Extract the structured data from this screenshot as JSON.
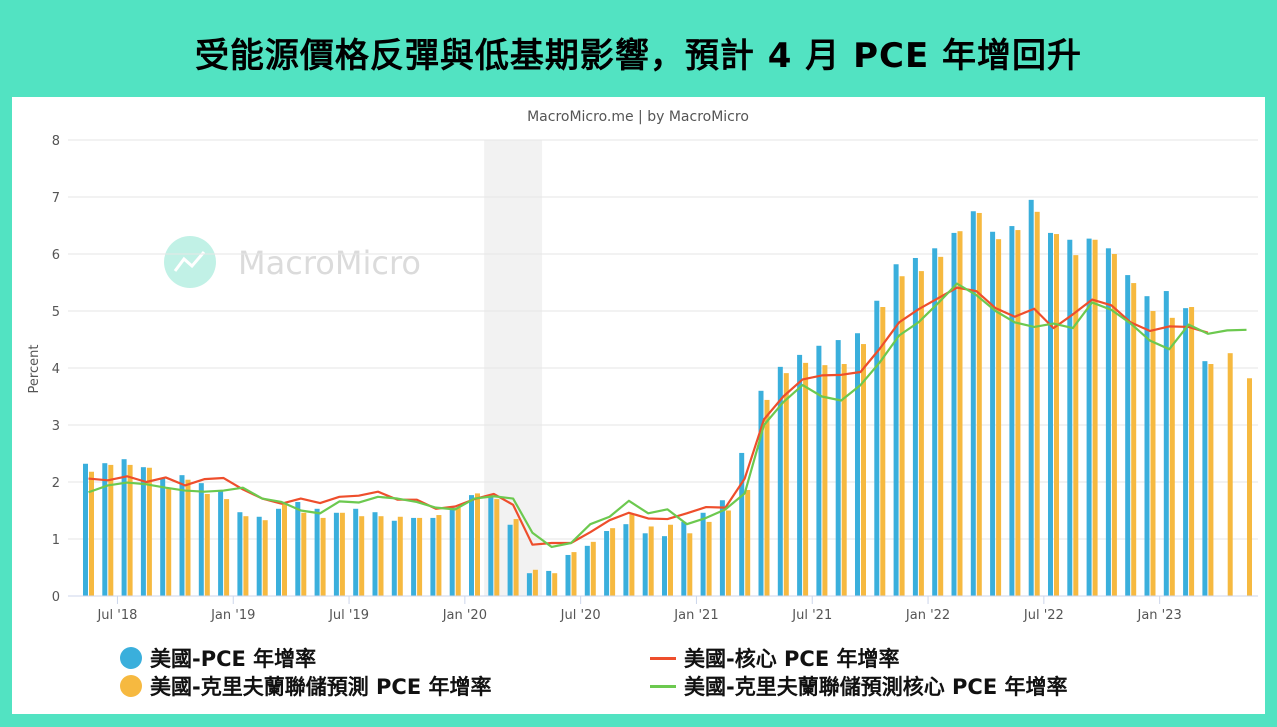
{
  "title": "受能源價格反彈與低基期影響，預計 4 月 PCE 年增回升",
  "chart_data": {
    "type": "bar+line",
    "subtitle": "MacroMicro.me | by MacroMicro",
    "watermark": "MacroMicro",
    "ylabel": "Percent",
    "ylim": [
      0,
      8
    ],
    "yticks": [
      0,
      1,
      2,
      3,
      4,
      5,
      6,
      7,
      8
    ],
    "grid": true,
    "legend_position": "bottom",
    "xtick_labels": [
      {
        "month": "2018-07",
        "label": "Jul '18"
      },
      {
        "month": "2019-01",
        "label": "Jan '19"
      },
      {
        "month": "2019-07",
        "label": "Jul '19"
      },
      {
        "month": "2020-01",
        "label": "Jan '20"
      },
      {
        "month": "2020-07",
        "label": "Jul '20"
      },
      {
        "month": "2021-01",
        "label": "Jan '21"
      },
      {
        "month": "2021-07",
        "label": "Jul '21"
      },
      {
        "month": "2022-01",
        "label": "Jan '22"
      },
      {
        "month": "2022-07",
        "label": "Jul '22"
      },
      {
        "month": "2023-01",
        "label": "Jan '23"
      }
    ],
    "shaded_period": [
      "2020-02",
      "2020-04"
    ],
    "start_month": "2018-05",
    "series": [
      {
        "name": "美國-PCE 年增率",
        "type": "bar",
        "color": "#3aafdc",
        "values": [
          2.32,
          2.33,
          2.4,
          2.26,
          2.07,
          2.12,
          1.98,
          1.86,
          1.47,
          1.39,
          1.53,
          1.65,
          1.53,
          1.46,
          1.53,
          1.47,
          1.32,
          1.37,
          1.37,
          1.55,
          1.77,
          1.74,
          1.25,
          0.4,
          0.44,
          0.72,
          0.88,
          1.14,
          1.26,
          1.1,
          1.05,
          1.3,
          1.46,
          1.68,
          2.51,
          3.6,
          4.02,
          4.23,
          4.39,
          4.49,
          4.61,
          5.18,
          5.82,
          5.93,
          6.1,
          6.37,
          6.75,
          6.39,
          6.49,
          6.95,
          6.37,
          6.25,
          6.27,
          6.1,
          5.63,
          5.26,
          5.35,
          5.05,
          4.12,
          null,
          null
        ]
      },
      {
        "name": "美國-克里夫蘭聯儲預測 PCE 年增率",
        "type": "bar",
        "color": "#f6b940",
        "values": [
          2.18,
          2.3,
          2.3,
          2.25,
          1.9,
          2.04,
          1.79,
          1.7,
          1.4,
          1.33,
          1.63,
          1.46,
          1.37,
          1.46,
          1.4,
          1.4,
          1.39,
          1.37,
          1.42,
          1.55,
          1.8,
          1.7,
          1.35,
          0.46,
          0.4,
          0.77,
          0.95,
          1.19,
          1.44,
          1.22,
          1.25,
          1.1,
          1.3,
          1.5,
          1.86,
          3.44,
          3.91,
          4.09,
          4.05,
          4.07,
          4.42,
          5.07,
          5.61,
          5.7,
          5.95,
          6.4,
          6.72,
          6.26,
          6.42,
          6.74,
          6.35,
          5.98,
          6.25,
          6.0,
          5.49,
          5.0,
          4.88,
          5.07,
          4.07,
          4.26,
          3.82
        ]
      },
      {
        "name": "美國-核心 PCE 年增率",
        "type": "line",
        "color": "#ee4e2c",
        "values": [
          2.06,
          2.03,
          2.1,
          2.0,
          2.08,
          1.94,
          2.05,
          2.07,
          1.87,
          1.71,
          1.62,
          1.71,
          1.63,
          1.74,
          1.76,
          1.83,
          1.69,
          1.69,
          1.53,
          1.57,
          1.7,
          1.79,
          1.6,
          0.9,
          0.93,
          0.93,
          1.12,
          1.33,
          1.46,
          1.36,
          1.35,
          1.45,
          1.56,
          1.55,
          2.06,
          3.1,
          3.5,
          3.8,
          3.87,
          3.88,
          3.93,
          4.34,
          4.8,
          5.03,
          5.22,
          5.41,
          5.35,
          5.05,
          4.9,
          5.04,
          4.7,
          4.94,
          5.2,
          5.1,
          4.8,
          4.65,
          4.73,
          4.72,
          4.62,
          null,
          null
        ]
      },
      {
        "name": "美國-克里夫蘭聯儲預測核心 PCE 年增率",
        "type": "line",
        "color": "#6cc94f",
        "values": [
          1.82,
          1.94,
          1.99,
          1.96,
          1.9,
          1.85,
          1.83,
          1.85,
          1.9,
          1.71,
          1.65,
          1.5,
          1.45,
          1.66,
          1.64,
          1.74,
          1.71,
          1.65,
          1.55,
          1.52,
          1.71,
          1.75,
          1.71,
          1.11,
          0.86,
          0.93,
          1.26,
          1.39,
          1.67,
          1.45,
          1.52,
          1.26,
          1.37,
          1.52,
          1.8,
          3.0,
          3.4,
          3.7,
          3.5,
          3.43,
          3.7,
          4.1,
          4.57,
          4.8,
          5.13,
          5.48,
          5.28,
          5.0,
          4.8,
          4.72,
          4.78,
          4.7,
          5.15,
          5.02,
          4.78,
          4.48,
          4.33,
          4.76,
          4.6,
          4.66,
          4.67
        ]
      }
    ]
  }
}
